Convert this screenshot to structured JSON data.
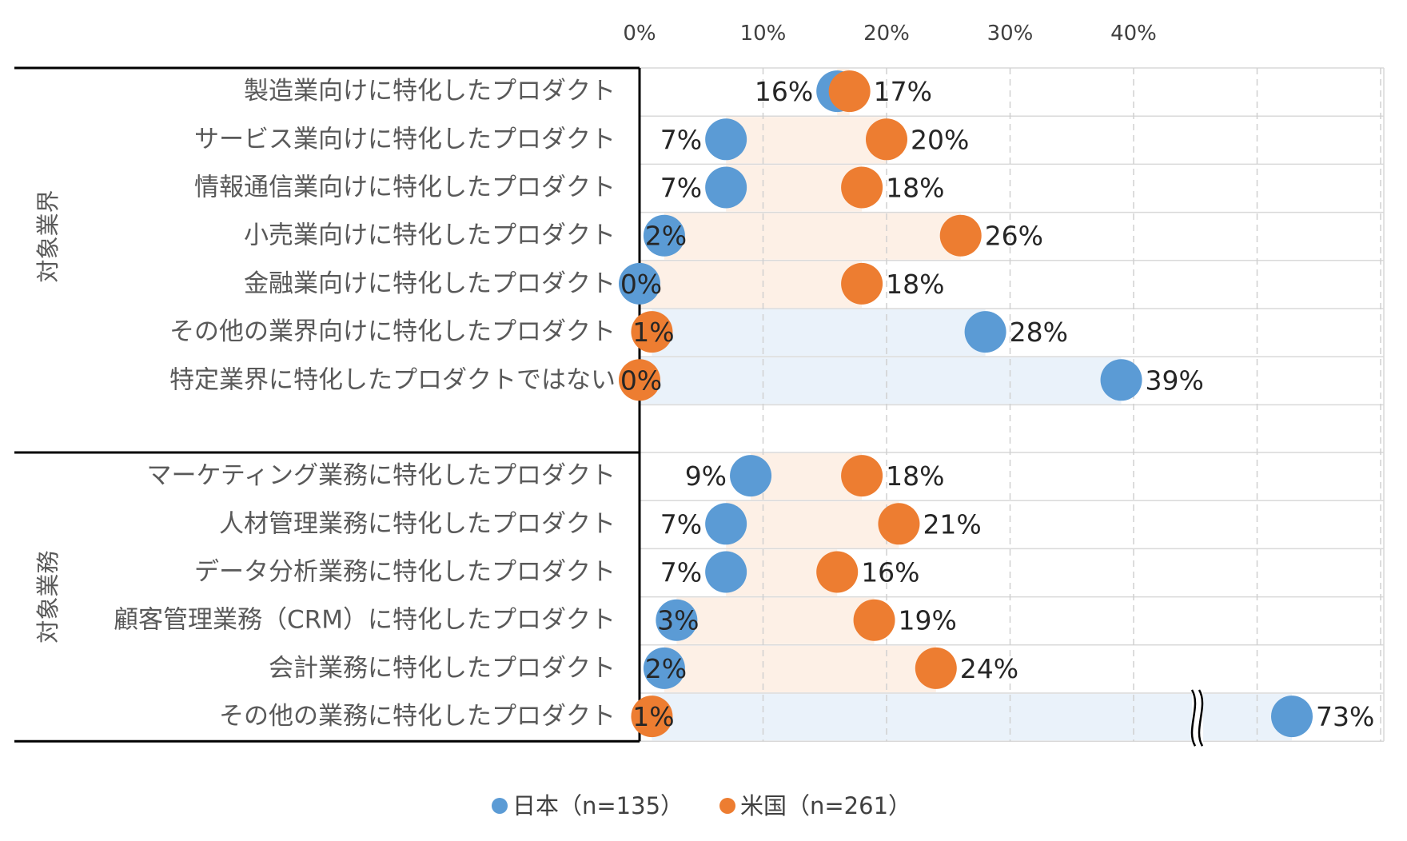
{
  "chart_data": {
    "type": "scatter",
    "x_ticks": [
      "0%",
      "10%",
      "20%",
      "30%",
      "40%"
    ],
    "xlim": [
      0,
      60
    ],
    "axis_break": true,
    "groups": [
      {
        "label": "対象業界",
        "categories": [
          "製造業向けに特化したプロダクト",
          "サービス業向けに特化したプロダクト",
          "情報通信業向けに特化したプロダクト",
          "小売業向けに特化したプロダクト",
          "金融業向けに特化したプロダクト",
          "その他の業界向けに特化したプロダクト",
          "特定業界に特化したプロダクトではない"
        ]
      },
      {
        "label": "対象業務",
        "categories": [
          "マーケティング業務に特化したプロダクト",
          "人材管理業務に特化したプロダクト",
          "データ分析業務に特化したプロダクト",
          "顧客管理業務（CRM）に特化したプロダクト",
          "会計業務に特化したプロダクト",
          "その他の業務に特化したプロダクト"
        ]
      }
    ],
    "series": [
      {
        "name": "日本（n=135）",
        "color": "#5b9bd5",
        "values": [
          16,
          7,
          7,
          2,
          0,
          28,
          39,
          9,
          7,
          7,
          3,
          2,
          73
        ],
        "labels": [
          "16%",
          "7%",
          "7%",
          "2%",
          "0%",
          "28%",
          "39%",
          "9%",
          "7%",
          "7%",
          "3%",
          "2%",
          "73%"
        ]
      },
      {
        "name": "米国（n=261）",
        "color": "#ed7d31",
        "values": [
          17,
          20,
          18,
          26,
          18,
          1,
          0,
          18,
          21,
          16,
          19,
          24,
          1
        ],
        "labels": [
          "17%",
          "20%",
          "18%",
          "26%",
          "18%",
          "1%",
          "0%",
          "18%",
          "21%",
          "16%",
          "19%",
          "24%",
          "1%"
        ]
      }
    ]
  }
}
